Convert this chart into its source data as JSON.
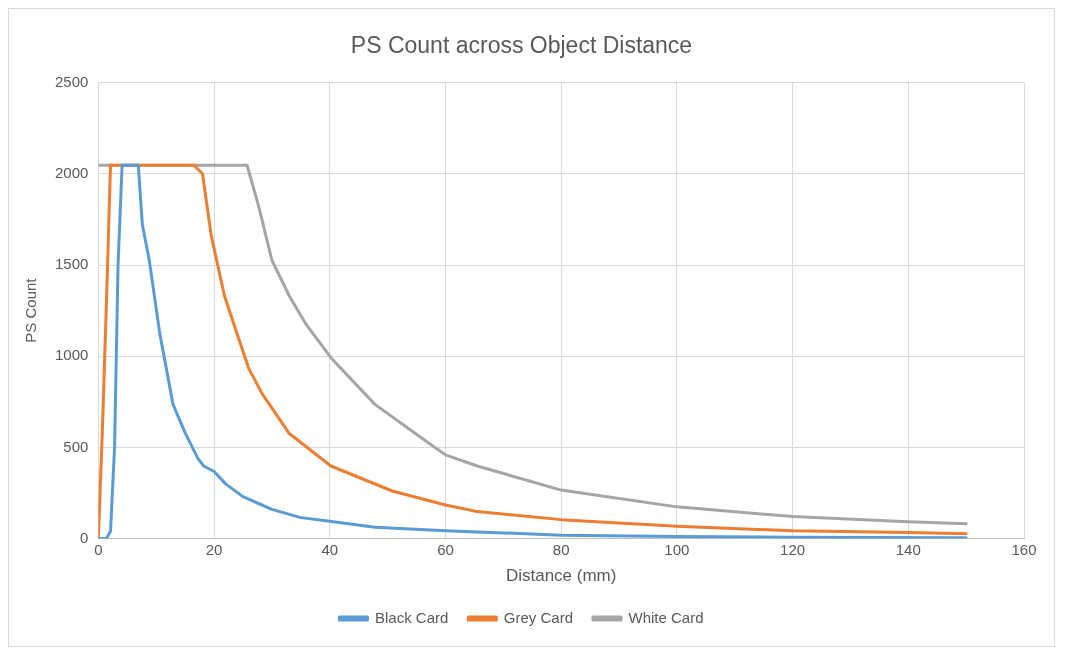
{
  "chart_data": {
    "type": "line",
    "title": "PS Count across Object Distance",
    "xlabel": "Distance (mm)",
    "ylabel": "PS Count",
    "xlim": [
      0,
      160
    ],
    "xticks": [
      0,
      20,
      40,
      60,
      80,
      100,
      120,
      140,
      160
    ],
    "ylim": [
      0,
      2500
    ],
    "yticks": [
      0,
      500,
      1000,
      1500,
      2000,
      2500
    ],
    "grid": true,
    "legend": "bottom",
    "marker": "none",
    "line_style": "solid",
    "series": [
      {
        "name": "Black Card",
        "color": "#5b9bd5",
        "x": [
          0,
          1.4,
          2.1,
          2.8,
          3.4,
          4.1,
          6.9,
          7.6,
          8.8,
          10.6,
          12.9,
          15,
          17.2,
          18.2,
          20,
          22,
          25,
          30,
          35,
          40,
          47.8,
          60,
          80,
          100,
          120,
          150
        ],
        "values": [
          0,
          0,
          40,
          500,
          1500,
          2047,
          2047,
          1722,
          1526,
          1128,
          736,
          580,
          440,
          398,
          368,
          300,
          230,
          160,
          115,
          95,
          62,
          43,
          19,
          12,
          8,
          5
        ]
      },
      {
        "name": "Grey Card",
        "color": "#ed7d31",
        "x": [
          0,
          0.7,
          1.4,
          2.1,
          16.5,
          18,
          19.5,
          21.8,
          24,
          26,
          28.3,
          33,
          40.2,
          50.8,
          60,
          65.5,
          80,
          100,
          120,
          140,
          150
        ],
        "values": [
          0,
          600,
          1300,
          2047,
          2047,
          2000,
          1663,
          1330,
          1120,
          932,
          795,
          576,
          398,
          261,
          184,
          148,
          104,
          68,
          43,
          34,
          27
        ]
      },
      {
        "name": "White Card",
        "color": "#a5a5a5",
        "x": [
          0,
          25.7,
          27.7,
          30,
          33,
          36,
          40.2,
          47.8,
          56.6,
          60,
          65.5,
          80,
          100,
          120,
          140,
          150
        ],
        "values": [
          2047,
          2047,
          1823,
          1526,
          1330,
          1170,
          992,
          736,
          535,
          459,
          398,
          266,
          174,
          121,
          92,
          82
        ]
      }
    ]
  }
}
